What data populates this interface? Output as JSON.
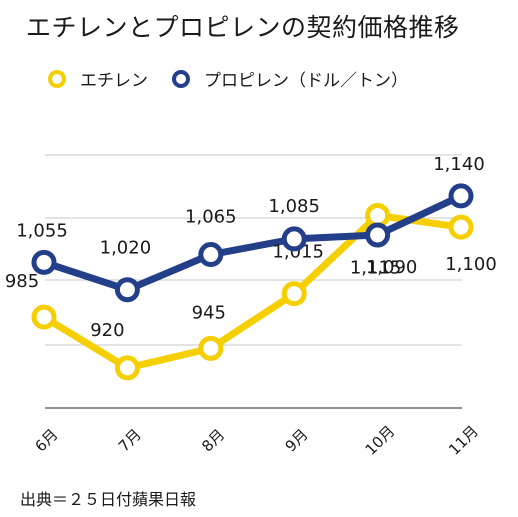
{
  "chart_data": {
    "type": "line",
    "title": "エチレンとプロピレンの契約価格推移",
    "categories": [
      "6月",
      "7月",
      "8月",
      "9月",
      "10月",
      "11月"
    ],
    "series": [
      {
        "name": "エチレン",
        "color": "#f5cf00",
        "values": [
          985,
          920,
          945,
          1015,
          1115,
          1100
        ]
      },
      {
        "name": "プロピレン（ドル／トン）",
        "color": "#233f8a",
        "values": [
          1055,
          1020,
          1065,
          1085,
          1090,
          1140
        ]
      }
    ],
    "ylim": [
      870,
      1200
    ],
    "grid": true,
    "legend_position": "top"
  },
  "legend": {
    "ethylene": "エチレン",
    "propylene": "プロピレン（ドル／トン）"
  },
  "source": "出典＝２５日付蘋果日報",
  "colors": {
    "ethylene": "#f5cf00",
    "propylene": "#233f8a",
    "grid": "#c8c8c8",
    "axis": "#6e6e6e"
  }
}
